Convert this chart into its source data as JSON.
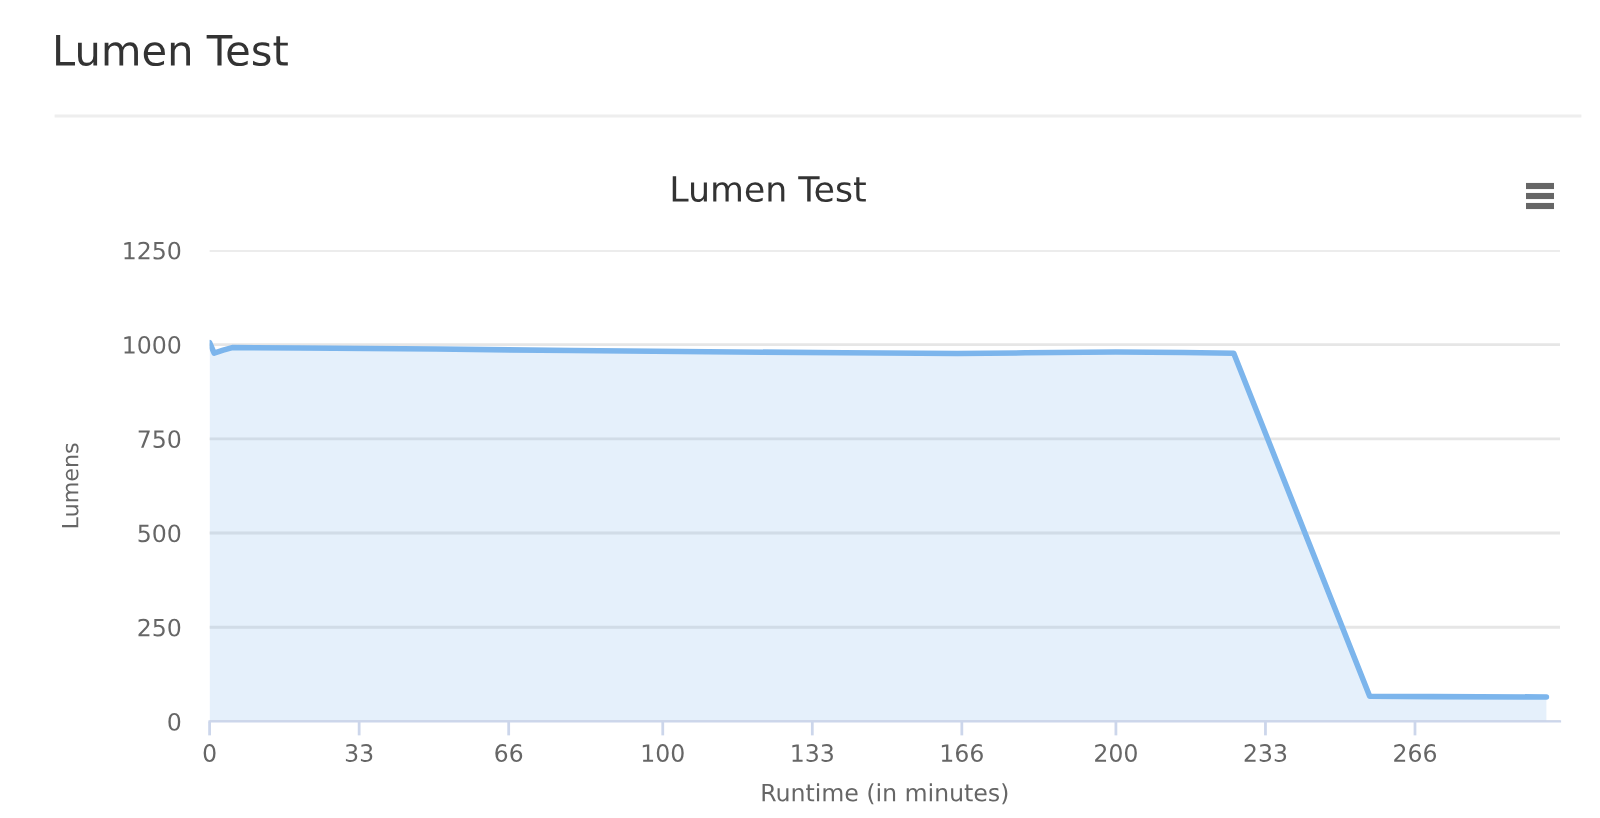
{
  "chart_data": {
    "type": "area",
    "title": "Lumen Test",
    "subtitle": "Lumen Test",
    "xlabel": "Runtime (in minutes)",
    "ylabel": "Lumens",
    "x": [
      0,
      1,
      3,
      5,
      20,
      50,
      80,
      110,
      140,
      165,
      180,
      200,
      215,
      226,
      256,
      270,
      295
    ],
    "series": [
      {
        "color": "#7cb5ec",
        "values": [
          1005,
          977,
          985,
          992,
          991,
          988,
          984,
          981,
          978,
          976,
          978,
          980,
          979,
          977,
          67,
          66,
          65
        ]
      }
    ],
    "xlim": [
      0,
      298
    ],
    "ylim": [
      0,
      1250
    ],
    "xticks": [
      0,
      33,
      66,
      100,
      133,
      166,
      200,
      233,
      266
    ],
    "yticks": [
      0,
      250,
      500,
      750,
      1000,
      1250
    ],
    "grid": "y"
  }
}
